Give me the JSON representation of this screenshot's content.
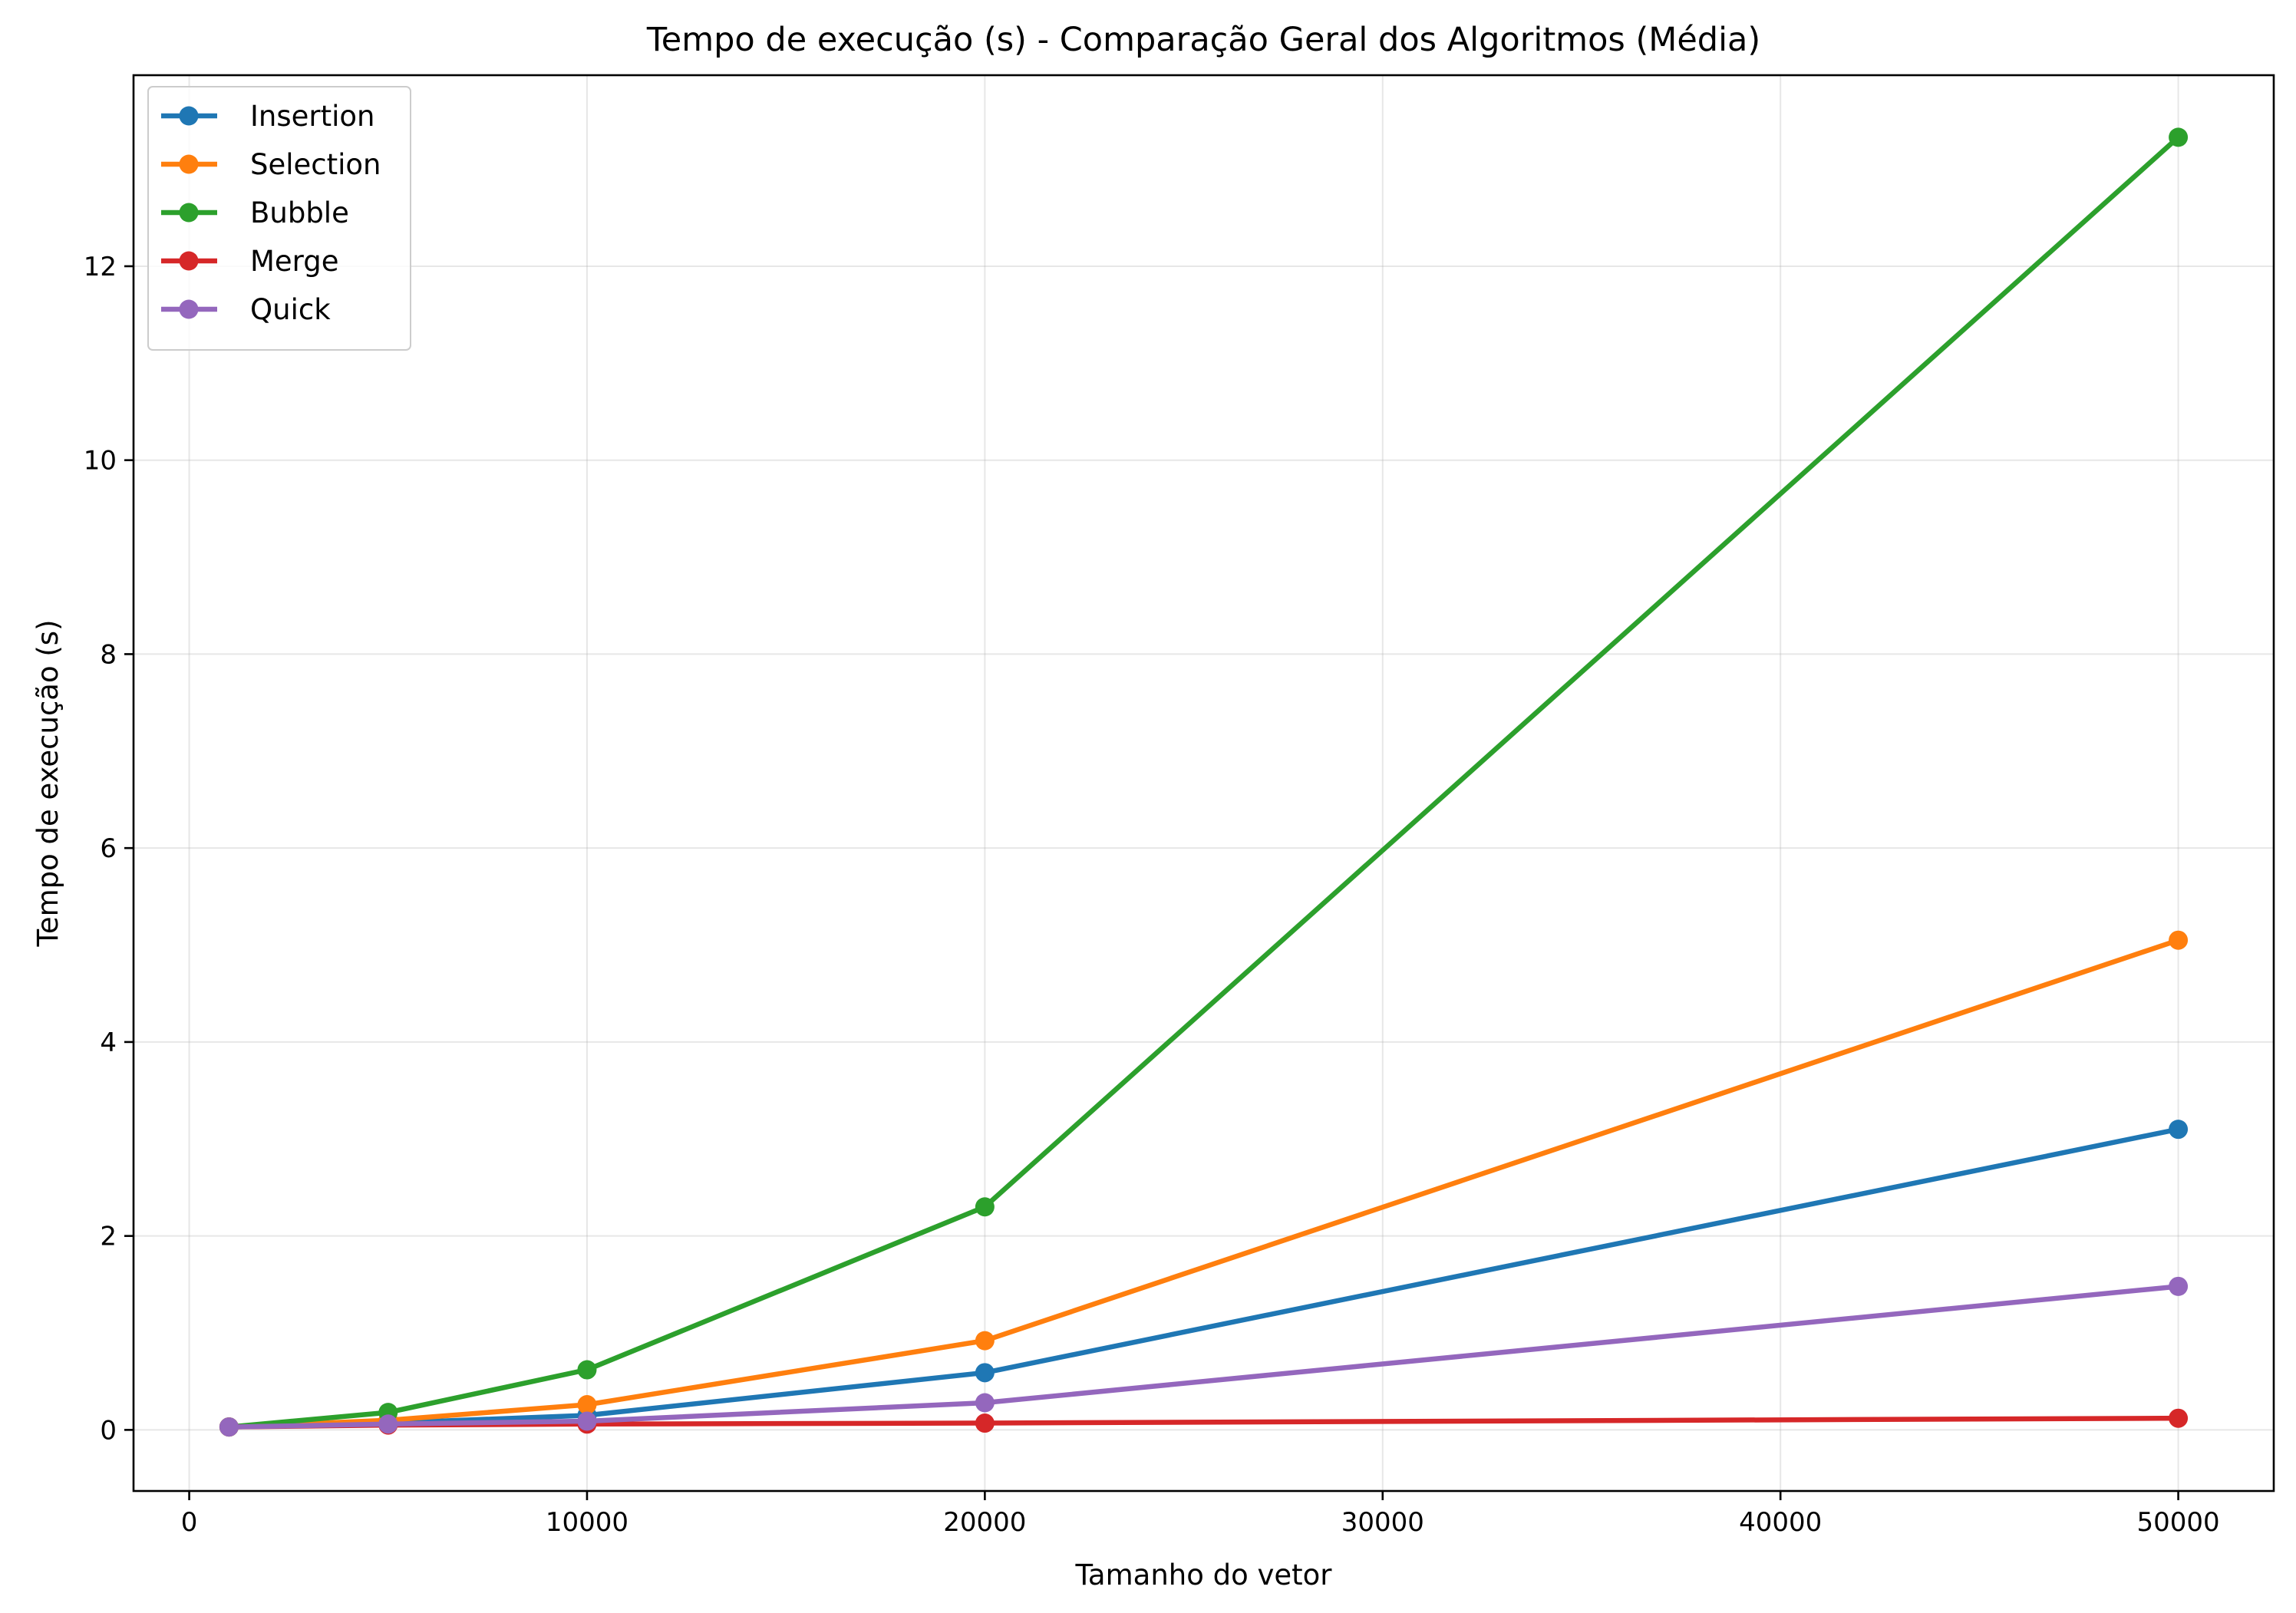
{
  "chart_data": {
    "type": "line",
    "title": "Tempo de execução (s) - Comparação Geral dos Algoritmos (Média)",
    "xlabel": "Tamanho do vetor",
    "ylabel": "Tempo de execução (s)",
    "xlim": [
      -1400,
      52400
    ],
    "ylim": [
      -0.63,
      13.97
    ],
    "xticks": [
      0,
      10000,
      20000,
      30000,
      40000,
      50000
    ],
    "yticks": [
      0,
      2,
      4,
      6,
      8,
      10,
      12
    ],
    "grid": true,
    "legend_position": "top-left",
    "x": [
      1000,
      5000,
      10000,
      20000,
      50000
    ],
    "series": [
      {
        "name": "Insertion",
        "color": "#1f77b4",
        "values": [
          0.03,
          0.07,
          0.15,
          0.59,
          3.1
        ]
      },
      {
        "name": "Selection",
        "color": "#ff7f0e",
        "values": [
          0.03,
          0.1,
          0.26,
          0.92,
          5.05
        ]
      },
      {
        "name": "Bubble",
        "color": "#2ca02c",
        "values": [
          0.03,
          0.18,
          0.62,
          2.3,
          13.33
        ]
      },
      {
        "name": "Merge",
        "color": "#d62728",
        "values": [
          0.03,
          0.05,
          0.06,
          0.07,
          0.12
        ]
      },
      {
        "name": "Quick",
        "color": "#9467bd",
        "values": [
          0.03,
          0.06,
          0.09,
          0.28,
          1.48
        ]
      }
    ]
  }
}
